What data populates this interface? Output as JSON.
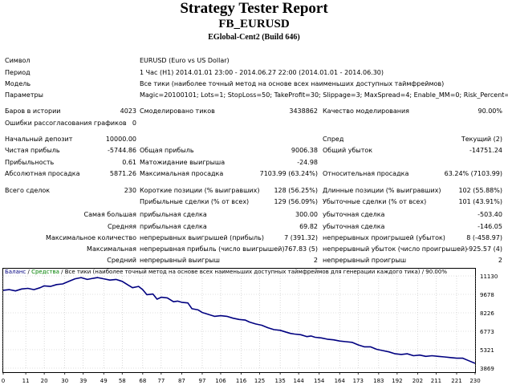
{
  "header": {
    "title": "Strategy Tester Report",
    "expert": "FB_EURUSD",
    "server": "EGlobal-Cent2 (Build 646)"
  },
  "info": [
    {
      "label": "Символ",
      "value": "EURUSD (Euro vs US Dollar)"
    },
    {
      "label": "Период",
      "value": "1 Час (H1) 2014.01.01 23:00 - 2014.06.27 22:00 (2014.01.01 - 2014.06.30)"
    },
    {
      "label": "Модель",
      "value": "Все тики (наиболее точный метод на основе всех наименьших доступных таймфреймов)"
    },
    {
      "label": "Параметры",
      "value": "Magic=20100101; Lots=1; StopLoss=50; TakeProfit=30; Slippage=3; MaxSpread=4; Enable_MM=0; Risk_Percent=20;"
    }
  ],
  "stats": {
    "bars_label": "Баров в истории",
    "bars": "4023",
    "ticks_label": "Смоделировано тиков",
    "ticks": "3438862",
    "quality_label": "Качество моделирования",
    "quality": "90.00%",
    "errors_label": "Ошибки рассогласования графиков",
    "errors": "0",
    "deposit_label": "Начальный депозит",
    "deposit": "10000.00",
    "spread_label": "Спред",
    "spread": "Текущий (2)",
    "netprofit_label": "Чистая прибыль",
    "netprofit": "-5744.86",
    "grossprofit_label": "Общая прибыль",
    "grossprofit": "9006.38",
    "grossloss_label": "Общий убыток",
    "grossloss": "-14751.24",
    "pf_label": "Прибыльность",
    "pf": "0.61",
    "payoff_label": "Матожидание выигрыша",
    "payoff": "-24.98",
    "absdd_label": "Абсолютная просадка",
    "absdd": "5871.26",
    "maxdd_label": "Максимальная просадка",
    "maxdd": "7103.99 (63.24%)",
    "reldd_label": "Относительная просадка",
    "reldd": "63.24% (7103.99)",
    "total_label": "Всего сделок",
    "total": "230",
    "short_label": "Короткие позиции (% выигравших)",
    "short": "128 (56.25%)",
    "long_label": "Длинные позиции (% выигравших)",
    "long": "102 (55.88%)",
    "profit_trades_label": "Прибыльные сделки (% от всех)",
    "profit_trades": "129 (56.09%)",
    "loss_trades_label": "Убыточные сделки (% от всех)",
    "loss_trades": "101 (43.91%)",
    "largest_label": "Самая большая",
    "largest_profit_label": "прибыльная сделка",
    "largest_profit": "300.00",
    "largest_loss_label": "убыточная сделка",
    "largest_loss": "-503.40",
    "average_label": "Средняя",
    "average_profit_label": "прибыльная сделка",
    "average_profit": "69.82",
    "average_loss_label": "убыточная сделка",
    "average_loss": "-146.05",
    "maxcount_label": "Максимальное количество",
    "maxcount_wins_label": "непрерывных выигрышей (прибыль)",
    "maxcount_wins": "7 (391.32)",
    "maxcount_losses_label": "непрерывных проигрышей (убыток)",
    "maxcount_losses": "8 (-458.97)",
    "maxamount_label": "Максимальная",
    "maxamount_wins_label": "непрерывная прибыль (число выигрышей)",
    "maxamount_wins": "767.83 (5)",
    "maxamount_losses_label": "непрерывный убыток (число проигрышей)",
    "maxamount_losses": "-925.57 (4)",
    "avgcons_label": "Средний",
    "avgcons_wins_label": "непрерывный выигрыш",
    "avgcons_wins": "2",
    "avgcons_losses_label": "непрерывный проигрыш",
    "avgcons_losses": "2"
  },
  "colors": {
    "balance": "#000080",
    "equity": "#008000",
    "grid": "#c0c0c0",
    "axis": "#000000"
  },
  "chart_data": {
    "type": "line",
    "legend": {
      "balance": "Баланс",
      "sep1": " / ",
      "equity": "Средства",
      "rest": " / Все тики (наиболее точный метод на основе всех наименьших доступных таймфреймов для генерации каждого тика) / 90.00%"
    },
    "x_ticks": [
      "0",
      "11",
      "20",
      "30",
      "39",
      "49",
      "58",
      "68",
      "77",
      "87",
      "97",
      "106",
      "116",
      "125",
      "135",
      "144",
      "154",
      "164",
      "173",
      "183",
      "192",
      "202",
      "211",
      "221",
      "230"
    ],
    "y_ticks": [
      "11130",
      "9678",
      "8226",
      "6773",
      "5321",
      "3869"
    ],
    "xlim": [
      0,
      230
    ],
    "ylim": [
      3869,
      11130
    ],
    "series": [
      {
        "name": "Баланс",
        "x": [
          0,
          3,
          6,
          9,
          12,
          15,
          18,
          20,
          23,
          26,
          29,
          32,
          35,
          38,
          41,
          44,
          46,
          49,
          52,
          55,
          58,
          61,
          63,
          66,
          68,
          70,
          73,
          75,
          77,
          80,
          83,
          85,
          87,
          90,
          92,
          95,
          97,
          100,
          103,
          106,
          109,
          112,
          115,
          118,
          120,
          123,
          126,
          129,
          132,
          135,
          138,
          140,
          142,
          145,
          148,
          150,
          152,
          155,
          158,
          161,
          164,
          167,
          170,
          173,
          176,
          179,
          182,
          185,
          188,
          191,
          194,
          197,
          200,
          203,
          206,
          209,
          212,
          215,
          218,
          221,
          224,
          227,
          230
        ],
        "y": [
          10000,
          10050,
          9950,
          10100,
          10150,
          10050,
          10200,
          10350,
          10300,
          10450,
          10500,
          10700,
          10900,
          11000,
          10850,
          10950,
          11000,
          10900,
          10800,
          10850,
          10700,
          10400,
          10200,
          10300,
          10050,
          9650,
          9700,
          9300,
          9450,
          9400,
          9100,
          9150,
          9050,
          9000,
          8550,
          8450,
          8250,
          8100,
          7950,
          8000,
          7950,
          7800,
          7700,
          7650,
          7500,
          7350,
          7250,
          7050,
          6900,
          6850,
          6700,
          6600,
          6550,
          6500,
          6350,
          6400,
          6300,
          6250,
          6150,
          6100,
          6000,
          5950,
          5900,
          5700,
          5550,
          5550,
          5350,
          5250,
          5150,
          5000,
          4950,
          5000,
          4850,
          4900,
          4800,
          4850,
          4800,
          4750,
          4700,
          4650,
          4650,
          4450,
          4250
        ]
      }
    ]
  }
}
